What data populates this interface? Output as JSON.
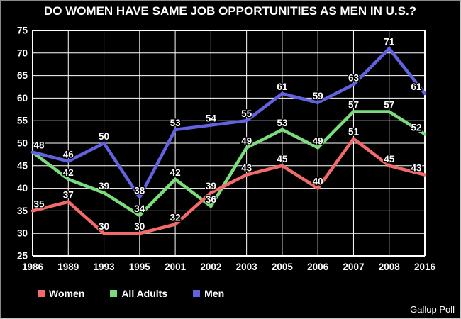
{
  "title": "DO WOMEN HAVE SAME JOB OPPORTUNITIES AS MEN IN U.S.?",
  "footer": {
    "source": "Gallup Poll"
  },
  "chart_data": {
    "type": "line",
    "title": "DO WOMEN HAVE SAME JOB OPPORTUNITIES AS MEN IN U.S.?",
    "categories": [
      "1986",
      "1989",
      "1993",
      "1995",
      "2001",
      "2002",
      "2003",
      "2005",
      "2006",
      "2007",
      "2008",
      "2016"
    ],
    "series": [
      {
        "name": "Women",
        "color": "#f26a6a",
        "values": [
          35,
          37,
          30,
          30,
          32,
          39,
          43,
          45,
          40,
          51,
          45,
          43
        ]
      },
      {
        "name": "All Adults",
        "color": "#7adc7a",
        "values": [
          48,
          42,
          39,
          34,
          42,
          36,
          49,
          53,
          49,
          57,
          57,
          52
        ]
      },
      {
        "name": "Men",
        "color": "#6262e0",
        "values": [
          48,
          46,
          50,
          38,
          53,
          54,
          55,
          61,
          59,
          63,
          71,
          61
        ]
      }
    ],
    "xlabel": "",
    "ylabel": "",
    "ylim": [
      25,
      75
    ],
    "ytick_step": 5,
    "grid": true,
    "grid_color": "#ffffff",
    "background_color": "#000000",
    "text_color": "#ffffff",
    "data_labels_shown": true,
    "legend_position": "bottom-left",
    "source": "Gallup Poll"
  }
}
